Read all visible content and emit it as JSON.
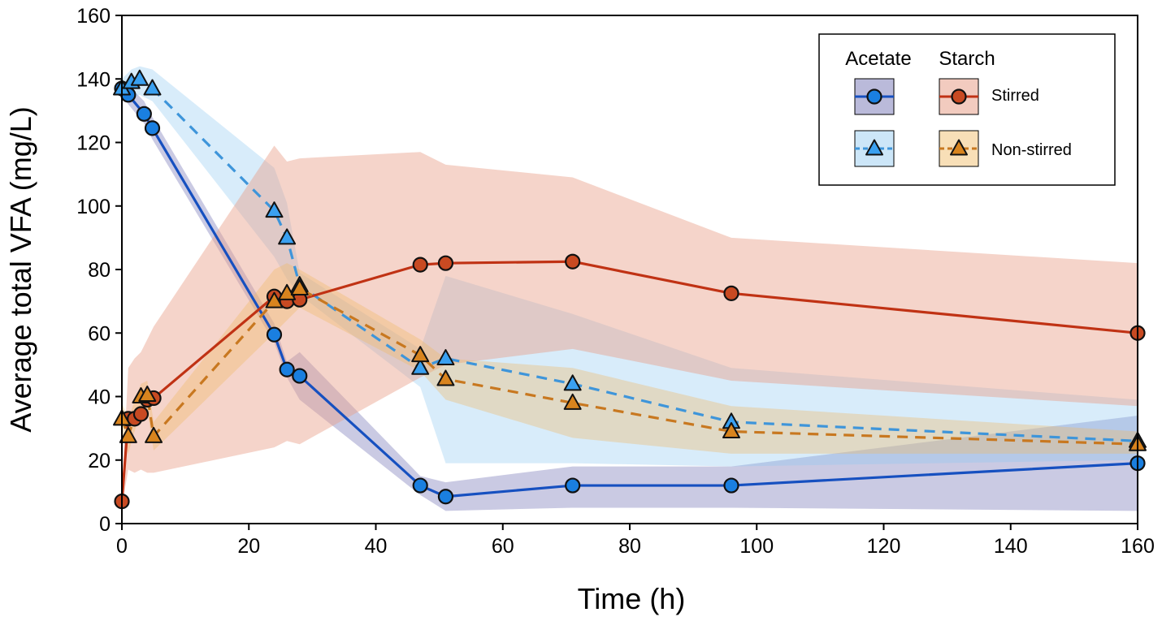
{
  "chart_data": {
    "type": "line",
    "title": "",
    "xlabel": "Time (h)",
    "ylabel": "Average total VFA (mg/L)",
    "xlim": [
      0,
      160
    ],
    "ylim": [
      0,
      160
    ],
    "xticks": [
      0,
      20,
      40,
      60,
      80,
      100,
      120,
      140,
      160
    ],
    "yticks": [
      0,
      20,
      40,
      60,
      80,
      100,
      120,
      140,
      160
    ],
    "grid": false,
    "legend": {
      "position": "top-right",
      "col_headers": [
        "Acetate",
        "Starch"
      ],
      "row_labels": [
        "Stirred",
        "Non-stirred"
      ]
    },
    "series": [
      {
        "name": "Acetate Stirred",
        "substrate": "Acetate",
        "condition": "Stirred",
        "color": "#1650c0",
        "marker": "circle",
        "marker_fill": "#1a7fe0",
        "band_color": "#5a5aa8",
        "band_opacity": 0.32,
        "dashed": false,
        "x": [
          0,
          1,
          3.5,
          4.8,
          24,
          26,
          28,
          47,
          51,
          71,
          96,
          160
        ],
        "y": [
          137,
          135,
          129,
          124.5,
          59.5,
          48.5,
          46.5,
          12,
          8.5,
          12,
          12,
          19
        ],
        "lower": [
          135,
          132,
          126,
          121,
          57,
          46,
          39,
          9,
          4,
          5,
          5,
          4
        ],
        "upper": [
          139,
          138,
          133,
          128,
          63,
          51,
          54,
          15,
          13,
          18,
          18,
          34
        ]
      },
      {
        "name": "Acetate Non-stirred",
        "substrate": "Acetate",
        "condition": "Non-stirred",
        "color": "#3e95da",
        "marker": "triangle",
        "marker_fill": "#3aa0f0",
        "band_color": "#8ec8f0",
        "band_opacity": 0.35,
        "dashed": true,
        "x": [
          0,
          1.5,
          2.8,
          4.8,
          24,
          26,
          28,
          47,
          51,
          71,
          96,
          160
        ],
        "y": [
          137,
          139,
          140,
          137,
          98.5,
          90,
          75,
          49,
          52,
          44,
          32,
          26
        ],
        "lower": [
          134,
          134,
          135,
          133,
          84,
          77,
          72,
          43,
          19,
          19,
          18,
          20
        ],
        "upper": [
          140,
          143,
          144,
          143,
          112,
          101,
          79,
          55,
          78,
          66,
          49,
          39
        ]
      },
      {
        "name": "Starch Stirred",
        "substrate": "Starch",
        "condition": "Stirred",
        "color": "#c03214",
        "marker": "circle",
        "marker_fill": "#c84a22",
        "band_color": "#e8a08a",
        "band_opacity": 0.45,
        "dashed": false,
        "x": [
          0,
          1,
          2,
          3,
          4,
          5,
          24,
          26,
          28,
          47,
          51,
          71,
          96,
          160
        ],
        "y": [
          7,
          33,
          33,
          34.5,
          39,
          39.5,
          71.5,
          70,
          70.5,
          81.5,
          82,
          82.5,
          72.5,
          60
        ],
        "lower": [
          5,
          17,
          16,
          17,
          16,
          16,
          24,
          26,
          25,
          46,
          50,
          55,
          45,
          37
        ],
        "upper": [
          9,
          49,
          52,
          54,
          58,
          62,
          119,
          114,
          115,
          117,
          113,
          109,
          90,
          82
        ]
      },
      {
        "name": "Starch Non-stirred",
        "substrate": "Starch",
        "condition": "Non-stirred",
        "color": "#c87820",
        "marker": "triangle",
        "marker_fill": "#d8841e",
        "band_color": "#f0b860",
        "band_opacity": 0.35,
        "dashed": true,
        "x": [
          0,
          1,
          3,
          4,
          5,
          24,
          26,
          28,
          47,
          51,
          71,
          96,
          160
        ],
        "y": [
          33,
          27.5,
          40,
          40.5,
          27.5,
          70,
          72.5,
          74,
          53,
          45.5,
          38,
          29,
          25
        ],
        "lower": [
          28,
          22,
          36,
          36,
          23,
          60,
          64,
          68,
          48,
          39,
          27,
          22,
          22
        ],
        "upper": [
          38,
          33,
          44,
          45,
          32,
          80,
          82,
          80,
          58,
          52,
          49,
          37,
          29
        ]
      }
    ]
  }
}
